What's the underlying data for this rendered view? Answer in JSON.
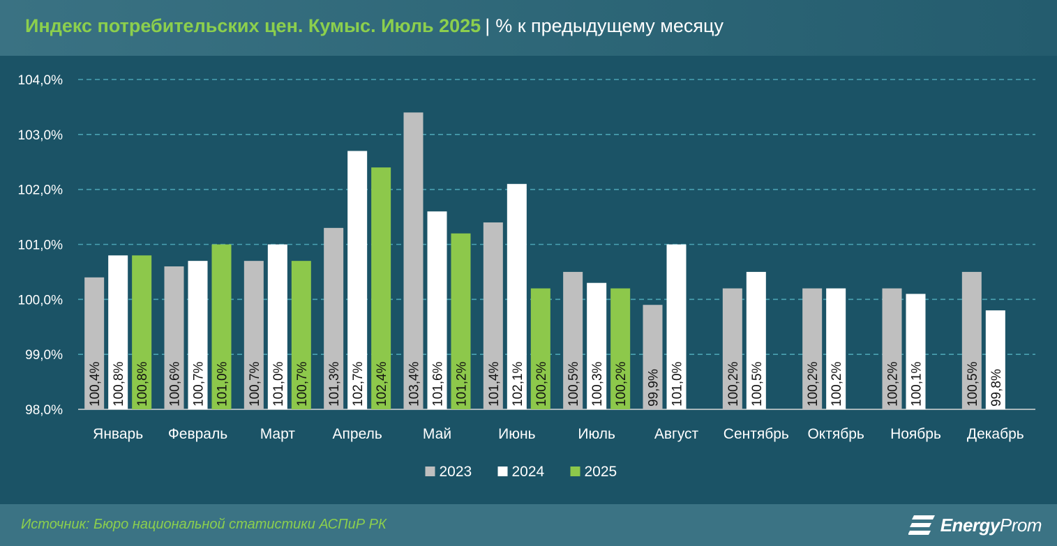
{
  "header": {
    "title_main": "Индекс потребительских цен. Кумыс. Июль 2025",
    "separator": "|",
    "title_sub": "% к предыдущему месяцу"
  },
  "footer": {
    "source": "Источник: Бюро национальной статистики АСПиР РК",
    "brand_bold": "Energy",
    "brand_light": "Prom"
  },
  "colors": {
    "background": "#1b5366",
    "title_accent": "#8ccf4d",
    "series_2023": "#bfbfbf",
    "series_2024": "#ffffff",
    "series_2025": "#8dc84b",
    "grid": "#4ba3b3"
  },
  "chart_data": {
    "type": "bar",
    "title": "Индекс потребительских цен. Кумыс. Июль 2025 | % к предыдущему месяцу",
    "xlabel": "",
    "ylabel": "",
    "ylim": [
      98.0,
      104.0
    ],
    "yticks": [
      "104,0%",
      "103,0%",
      "102,0%",
      "101,0%",
      "100,0%",
      "99,0%",
      "98,0%"
    ],
    "ytick_values": [
      104.0,
      103.0,
      102.0,
      101.0,
      100.0,
      99.0,
      98.0
    ],
    "grid": true,
    "legend": "bottom-center",
    "categories": [
      "Январь",
      "Февраль",
      "Март",
      "Апрель",
      "Май",
      "Июнь",
      "Июль",
      "Август",
      "Сентябрь",
      "Октябрь",
      "Ноябрь",
      "Декабрь"
    ],
    "series": [
      {
        "name": "2023",
        "color": "#bfbfbf",
        "values": [
          100.4,
          100.6,
          100.7,
          101.3,
          103.4,
          101.4,
          100.5,
          99.9,
          100.2,
          100.2,
          100.2,
          100.5
        ],
        "labels": [
          "100,4%",
          "100,6%",
          "100,7%",
          "101,3%",
          "103,4%",
          "101,4%",
          "100,5%",
          "99,9%",
          "100,2%",
          "100,2%",
          "100,2%",
          "100,5%"
        ]
      },
      {
        "name": "2024",
        "color": "#ffffff",
        "values": [
          100.8,
          100.7,
          101.0,
          102.7,
          101.6,
          102.1,
          100.3,
          101.0,
          100.5,
          100.2,
          100.1,
          99.8
        ],
        "labels": [
          "100,8%",
          "100,7%",
          "101,0%",
          "102,7%",
          "101,6%",
          "102,1%",
          "100,3%",
          "101,0%",
          "100,5%",
          "100,2%",
          "100,1%",
          "99,8%"
        ]
      },
      {
        "name": "2025",
        "color": "#8dc84b",
        "values": [
          100.8,
          101.0,
          100.7,
          102.4,
          101.2,
          100.2,
          100.2,
          null,
          null,
          null,
          null,
          null
        ],
        "labels": [
          "100,8%",
          "101,0%",
          "100,7%",
          "102,4%",
          "101,2%",
          "100,2%",
          "100,2%",
          null,
          null,
          null,
          null,
          null
        ]
      }
    ]
  }
}
